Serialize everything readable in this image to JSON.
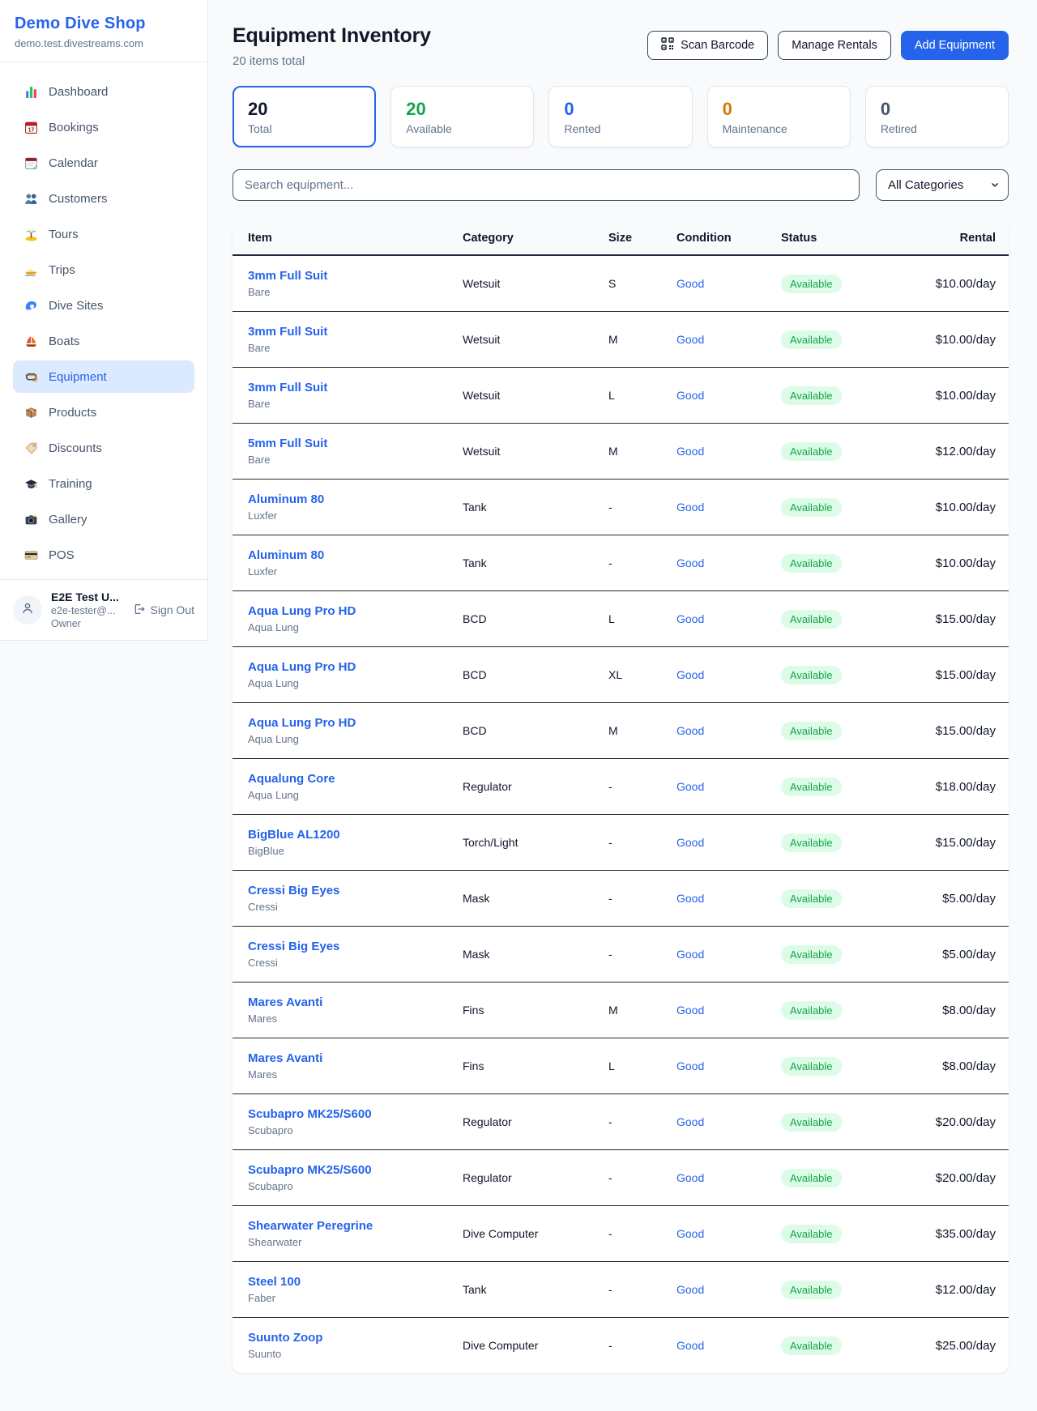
{
  "brand": {
    "name": "Demo Dive Shop",
    "domain": "demo.test.divestreams.com"
  },
  "sidebar": {
    "items": [
      {
        "label": "Dashboard",
        "icon": "bar-chart",
        "active": false
      },
      {
        "label": "Bookings",
        "icon": "calendar-date",
        "active": false
      },
      {
        "label": "Calendar",
        "icon": "calendar",
        "active": false
      },
      {
        "label": "Customers",
        "icon": "people",
        "active": false
      },
      {
        "label": "Tours",
        "icon": "palm-island",
        "active": false
      },
      {
        "label": "Trips",
        "icon": "speedboat",
        "active": false
      },
      {
        "label": "Dive Sites",
        "icon": "wave",
        "active": false
      },
      {
        "label": "Boats",
        "icon": "sailboat",
        "active": false
      },
      {
        "label": "Equipment",
        "icon": "dive-mask",
        "active": true
      },
      {
        "label": "Products",
        "icon": "package",
        "active": false
      },
      {
        "label": "Discounts",
        "icon": "tag",
        "active": false
      },
      {
        "label": "Training",
        "icon": "grad-cap",
        "active": false
      },
      {
        "label": "Gallery",
        "icon": "camera",
        "active": false
      },
      {
        "label": "POS",
        "icon": "credit-card",
        "active": false
      }
    ]
  },
  "user": {
    "name": "E2E Test U...",
    "email": "e2e-tester@...",
    "role": "Owner",
    "sign_out_label": "Sign Out"
  },
  "header": {
    "title": "Equipment Inventory",
    "subtitle": "20 items total",
    "scan_button": "Scan Barcode",
    "manage_button": "Manage Rentals",
    "add_button": "Add Equipment"
  },
  "stats": [
    {
      "value": "20",
      "label": "Total",
      "color": "#0f172a",
      "selected": true
    },
    {
      "value": "20",
      "label": "Available",
      "color": "#16a34a",
      "selected": false
    },
    {
      "value": "0",
      "label": "Rented",
      "color": "#2563eb",
      "selected": false
    },
    {
      "value": "0",
      "label": "Maintenance",
      "color": "#d97706",
      "selected": false
    },
    {
      "value": "0",
      "label": "Retired",
      "color": "#475569",
      "selected": false
    }
  ],
  "search": {
    "placeholder": "Search equipment...",
    "category_filter": "All Categories"
  },
  "table": {
    "columns": [
      "Item",
      "Category",
      "Size",
      "Condition",
      "Status",
      "Rental"
    ],
    "rows": [
      {
        "name": "3mm Full Suit",
        "brand": "Bare",
        "category": "Wetsuit",
        "size": "S",
        "condition": "Good",
        "status": "Available",
        "rental": "$10.00/day"
      },
      {
        "name": "3mm Full Suit",
        "brand": "Bare",
        "category": "Wetsuit",
        "size": "M",
        "condition": "Good",
        "status": "Available",
        "rental": "$10.00/day"
      },
      {
        "name": "3mm Full Suit",
        "brand": "Bare",
        "category": "Wetsuit",
        "size": "L",
        "condition": "Good",
        "status": "Available",
        "rental": "$10.00/day"
      },
      {
        "name": "5mm Full Suit",
        "brand": "Bare",
        "category": "Wetsuit",
        "size": "M",
        "condition": "Good",
        "status": "Available",
        "rental": "$12.00/day"
      },
      {
        "name": "Aluminum 80",
        "brand": "Luxfer",
        "category": "Tank",
        "size": "-",
        "condition": "Good",
        "status": "Available",
        "rental": "$10.00/day"
      },
      {
        "name": "Aluminum 80",
        "brand": "Luxfer",
        "category": "Tank",
        "size": "-",
        "condition": "Good",
        "status": "Available",
        "rental": "$10.00/day"
      },
      {
        "name": "Aqua Lung Pro HD",
        "brand": "Aqua Lung",
        "category": "BCD",
        "size": "L",
        "condition": "Good",
        "status": "Available",
        "rental": "$15.00/day"
      },
      {
        "name": "Aqua Lung Pro HD",
        "brand": "Aqua Lung",
        "category": "BCD",
        "size": "XL",
        "condition": "Good",
        "status": "Available",
        "rental": "$15.00/day"
      },
      {
        "name": "Aqua Lung Pro HD",
        "brand": "Aqua Lung",
        "category": "BCD",
        "size": "M",
        "condition": "Good",
        "status": "Available",
        "rental": "$15.00/day"
      },
      {
        "name": "Aqualung Core",
        "brand": "Aqua Lung",
        "category": "Regulator",
        "size": "-",
        "condition": "Good",
        "status": "Available",
        "rental": "$18.00/day"
      },
      {
        "name": "BigBlue AL1200",
        "brand": "BigBlue",
        "category": "Torch/Light",
        "size": "-",
        "condition": "Good",
        "status": "Available",
        "rental": "$15.00/day"
      },
      {
        "name": "Cressi Big Eyes",
        "brand": "Cressi",
        "category": "Mask",
        "size": "-",
        "condition": "Good",
        "status": "Available",
        "rental": "$5.00/day"
      },
      {
        "name": "Cressi Big Eyes",
        "brand": "Cressi",
        "category": "Mask",
        "size": "-",
        "condition": "Good",
        "status": "Available",
        "rental": "$5.00/day"
      },
      {
        "name": "Mares Avanti",
        "brand": "Mares",
        "category": "Fins",
        "size": "M",
        "condition": "Good",
        "status": "Available",
        "rental": "$8.00/day"
      },
      {
        "name": "Mares Avanti",
        "brand": "Mares",
        "category": "Fins",
        "size": "L",
        "condition": "Good",
        "status": "Available",
        "rental": "$8.00/day"
      },
      {
        "name": "Scubapro MK25/S600",
        "brand": "Scubapro",
        "category": "Regulator",
        "size": "-",
        "condition": "Good",
        "status": "Available",
        "rental": "$20.00/day"
      },
      {
        "name": "Scubapro MK25/S600",
        "brand": "Scubapro",
        "category": "Regulator",
        "size": "-",
        "condition": "Good",
        "status": "Available",
        "rental": "$20.00/day"
      },
      {
        "name": "Shearwater Peregrine",
        "brand": "Shearwater",
        "category": "Dive Computer",
        "size": "-",
        "condition": "Good",
        "status": "Available",
        "rental": "$35.00/day"
      },
      {
        "name": "Steel 100",
        "brand": "Faber",
        "category": "Tank",
        "size": "-",
        "condition": "Good",
        "status": "Available",
        "rental": "$12.00/day"
      },
      {
        "name": "Suunto Zoop",
        "brand": "Suunto",
        "category": "Dive Computer",
        "size": "-",
        "condition": "Good",
        "status": "Available",
        "rental": "$25.00/day"
      }
    ]
  },
  "colors": {
    "accent_blue": "#2563eb",
    "status_green": "#16a34a",
    "status_green_bg": "#dcfce7",
    "maintenance_orange": "#d97706",
    "retired_gray": "#475569",
    "page_bg": "#f8fafc"
  }
}
